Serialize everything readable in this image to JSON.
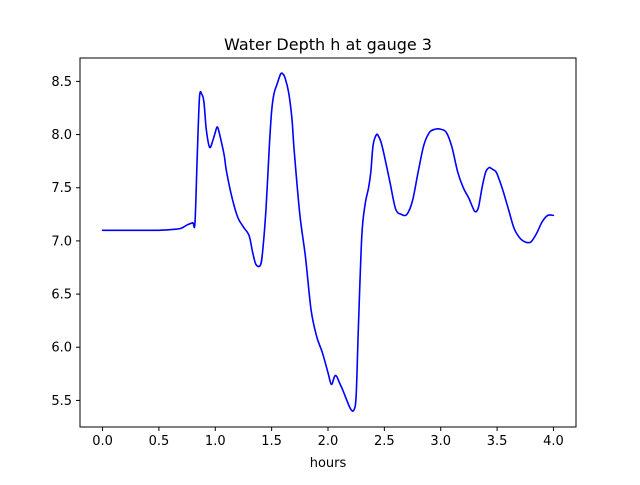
{
  "chart_data": {
    "type": "line",
    "title": "Water Depth h at gauge 3",
    "xlabel": "hours",
    "ylabel": "",
    "xlim": [
      -0.2,
      4.2
    ],
    "ylim": [
      5.25,
      8.72
    ],
    "xticks": [
      0.0,
      0.5,
      1.0,
      1.5,
      2.0,
      2.5,
      3.0,
      3.5,
      4.0
    ],
    "xtick_labels": [
      "0.0",
      "0.5",
      "1.0",
      "1.5",
      "2.0",
      "2.5",
      "3.0",
      "3.5",
      "4.0"
    ],
    "yticks": [
      5.5,
      6.0,
      6.5,
      7.0,
      7.5,
      8.0,
      8.5
    ],
    "ytick_labels": [
      "5.5",
      "6.0",
      "6.5",
      "7.0",
      "7.5",
      "8.0",
      "8.5"
    ],
    "grid": false,
    "series": [
      {
        "name": "",
        "color": "#0000ff",
        "x": [
          0.0,
          0.25,
          0.5,
          0.65,
          0.7,
          0.75,
          0.8,
          0.82,
          0.84,
          0.86,
          0.88,
          0.9,
          0.92,
          0.95,
          0.98,
          1.0,
          1.02,
          1.05,
          1.08,
          1.1,
          1.15,
          1.2,
          1.25,
          1.3,
          1.33,
          1.36,
          1.4,
          1.42,
          1.45,
          1.48,
          1.5,
          1.52,
          1.55,
          1.58,
          1.6,
          1.62,
          1.65,
          1.68,
          1.7,
          1.75,
          1.8,
          1.85,
          1.9,
          1.95,
          2.0,
          2.03,
          2.06,
          2.08,
          2.1,
          2.13,
          2.16,
          2.2,
          2.23,
          2.25,
          2.27,
          2.3,
          2.33,
          2.36,
          2.38,
          2.4,
          2.43,
          2.45,
          2.47,
          2.5,
          2.55,
          2.6,
          2.65,
          2.7,
          2.75,
          2.8,
          2.85,
          2.9,
          2.95,
          3.0,
          3.05,
          3.1,
          3.15,
          3.2,
          3.25,
          3.3,
          3.33,
          3.35,
          3.37,
          3.4,
          3.43,
          3.45,
          3.48,
          3.5,
          3.55,
          3.6,
          3.65,
          3.7,
          3.75,
          3.8,
          3.85,
          3.9,
          3.95,
          4.0
        ],
        "y": [
          7.1,
          7.1,
          7.1,
          7.11,
          7.12,
          7.15,
          7.17,
          7.17,
          7.8,
          8.35,
          8.38,
          8.3,
          8.05,
          7.88,
          7.95,
          8.02,
          8.07,
          7.95,
          7.8,
          7.65,
          7.4,
          7.22,
          7.13,
          7.05,
          6.9,
          6.78,
          6.77,
          6.9,
          7.3,
          7.9,
          8.22,
          8.38,
          8.48,
          8.57,
          8.57,
          8.53,
          8.4,
          8.15,
          7.85,
          7.25,
          6.85,
          6.35,
          6.1,
          5.95,
          5.76,
          5.65,
          5.73,
          5.72,
          5.67,
          5.6,
          5.52,
          5.42,
          5.41,
          5.55,
          6.2,
          7.05,
          7.35,
          7.5,
          7.65,
          7.9,
          8.0,
          7.98,
          7.93,
          7.8,
          7.55,
          7.3,
          7.25,
          7.25,
          7.38,
          7.65,
          7.9,
          8.02,
          8.05,
          8.05,
          8.02,
          7.88,
          7.65,
          7.5,
          7.4,
          7.28,
          7.3,
          7.4,
          7.52,
          7.65,
          7.69,
          7.68,
          7.66,
          7.63,
          7.48,
          7.3,
          7.12,
          7.03,
          6.99,
          6.99,
          7.07,
          7.18,
          7.24,
          7.24
        ]
      }
    ]
  }
}
